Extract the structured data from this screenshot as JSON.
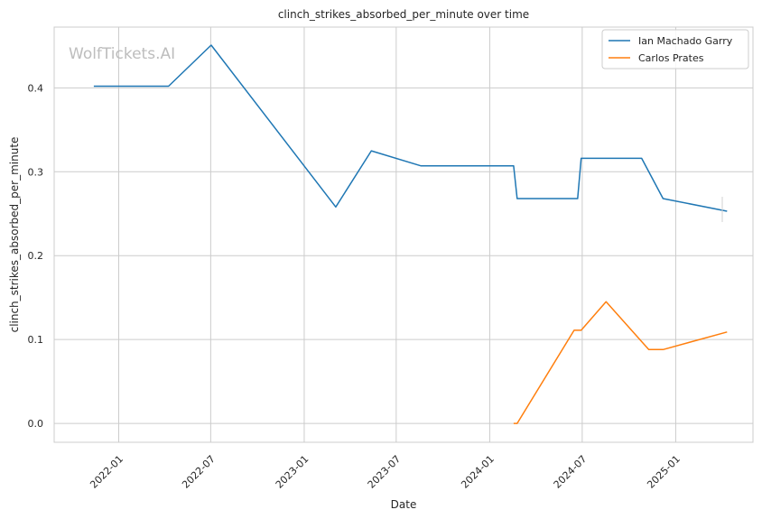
{
  "chart_data": {
    "type": "line",
    "title": "clinch_strikes_absorbed_per_minute over time",
    "xlabel": "Date",
    "ylabel": "clinch_strikes_absorbed_per_minute",
    "watermark": "WolfTickets.AI",
    "xlim": [
      "2021-08-27",
      "2025-06-02"
    ],
    "ylim": [
      -0.0225,
      0.4725
    ],
    "x_ticks": [
      "2022-01",
      "2022-07",
      "2023-01",
      "2023-07",
      "2024-01",
      "2024-07",
      "2025-01"
    ],
    "y_ticks": [
      "0.0",
      "0.1",
      "0.2",
      "0.3",
      "0.4"
    ],
    "grid": true,
    "legend_position": "top-right",
    "series": [
      {
        "name": "Ian Machado Garry",
        "color": "#1f77b4",
        "points": [
          {
            "x": "2021-11-13",
            "y": 0.402
          },
          {
            "x": "2022-04-09",
            "y": 0.402
          },
          {
            "x": "2022-07-02",
            "y": 0.451
          },
          {
            "x": "2023-03-04",
            "y": 0.258
          },
          {
            "x": "2023-05-13",
            "y": 0.325
          },
          {
            "x": "2023-08-19",
            "y": 0.307
          },
          {
            "x": "2024-02-17",
            "y": 0.307
          },
          {
            "x": "2024-02-24",
            "y": 0.268
          },
          {
            "x": "2024-06-22",
            "y": 0.268
          },
          {
            "x": "2024-06-29",
            "y": 0.316
          },
          {
            "x": "2024-10-26",
            "y": 0.316
          },
          {
            "x": "2024-12-07",
            "y": 0.268
          },
          {
            "x": "2025-04-12",
            "y": 0.253
          }
        ]
      },
      {
        "name": "Carlos Prates",
        "color": "#ff7f0e",
        "points": [
          {
            "x": "2024-02-17",
            "y": 0.0
          },
          {
            "x": "2024-02-24",
            "y": 0.0
          },
          {
            "x": "2024-06-15",
            "y": 0.111
          },
          {
            "x": "2024-06-29",
            "y": 0.111
          },
          {
            "x": "2024-08-17",
            "y": 0.145
          },
          {
            "x": "2024-11-09",
            "y": 0.088
          },
          {
            "x": "2024-12-07",
            "y": 0.088
          },
          {
            "x": "2025-04-12",
            "y": 0.109
          }
        ]
      }
    ]
  }
}
